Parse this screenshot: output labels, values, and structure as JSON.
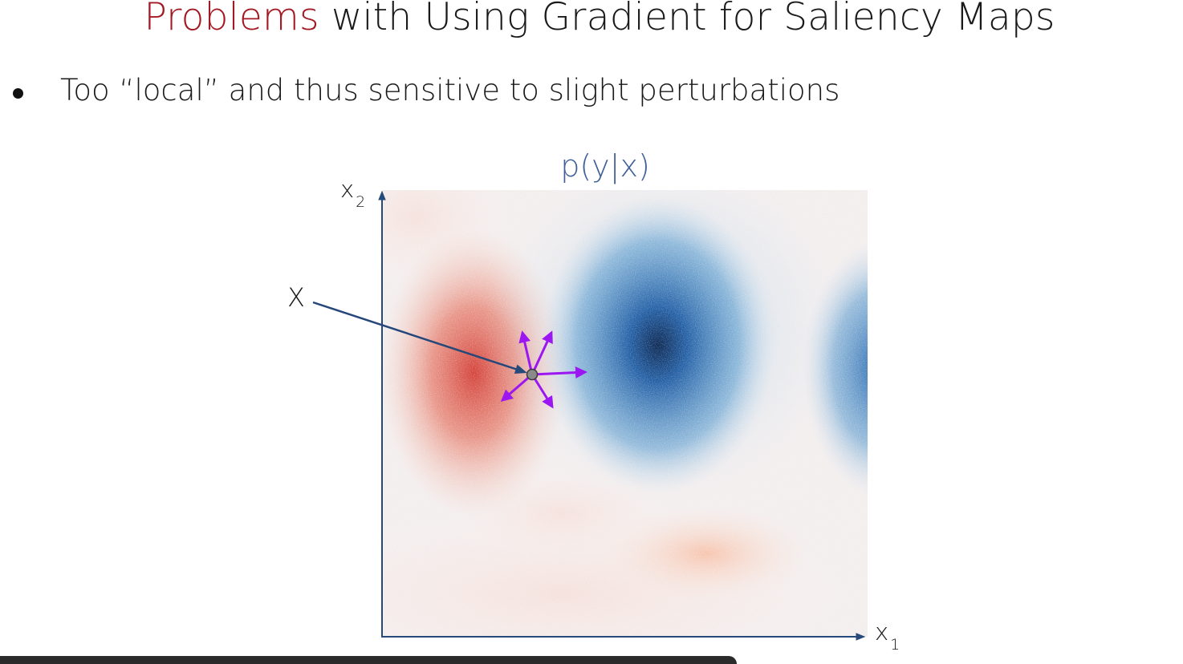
{
  "slide": {
    "title_accent": "Problems",
    "title_rest": " with Using Gradient for Saliency Maps",
    "bullet": "Too “local” and thus sensitive to slight perturbations"
  },
  "figure": {
    "plot_title": "p(y|x)",
    "x_axis_var": "x",
    "x_axis_sub": "1",
    "y_axis_var": "x",
    "y_axis_sub": "2",
    "point_label": "X",
    "colors": {
      "positive": "#d0312d",
      "negative": "#1f5fa6",
      "perturbation_arrows": "#9b16f0",
      "axes": "#264a7a",
      "plot_title": "#3f5f98"
    }
  }
}
